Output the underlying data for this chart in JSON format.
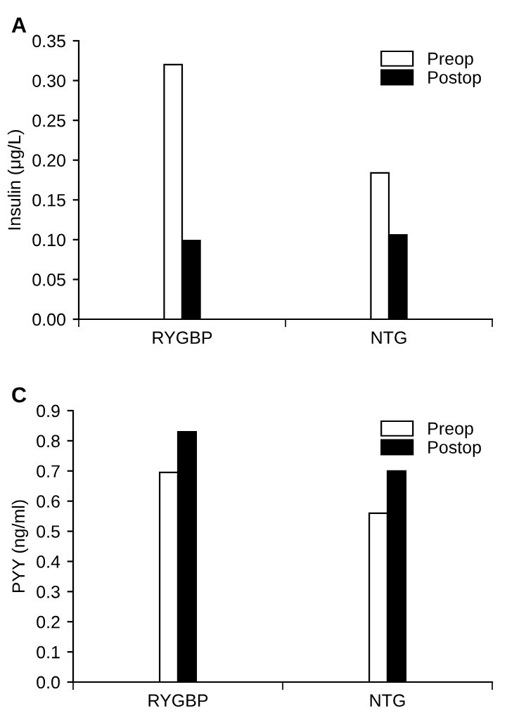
{
  "chart_data": [
    {
      "type": "bar",
      "title": "A",
      "ylabel": "Insulin (μg/L)",
      "categories": [
        "RYGBP",
        "NTG"
      ],
      "series": [
        {
          "name": "Preop",
          "color": "#ffffff",
          "values": [
            0.32,
            0.184
          ]
        },
        {
          "name": "Postop",
          "color": "#000000",
          "values": [
            0.099,
            0.106
          ]
        }
      ],
      "ylim": [
        0,
        0.35
      ],
      "yticks": [
        {
          "value": 0,
          "label": "0.00"
        },
        {
          "value": 0.05,
          "label": "0.05"
        },
        {
          "value": 0.1,
          "label": "0.10"
        },
        {
          "value": 0.15,
          "label": "0.15"
        },
        {
          "value": 0.2,
          "label": "0.20"
        },
        {
          "value": 0.25,
          "label": "0.25"
        },
        {
          "value": 0.3,
          "label": "0.30"
        },
        {
          "value": 0.35,
          "label": "0.35"
        }
      ],
      "grid": false,
      "legend": "top right"
    },
    {
      "type": "bar",
      "title": "C",
      "ylabel": "PYY (ng/ml)",
      "categories": [
        "RYGBP",
        "NTG"
      ],
      "series": [
        {
          "name": "Preop",
          "color": "#ffffff",
          "values": [
            0.695,
            0.56
          ]
        },
        {
          "name": "Postop",
          "color": "#000000",
          "values": [
            0.83,
            0.7
          ]
        }
      ],
      "ylim": [
        0,
        0.9
      ],
      "yticks": [
        {
          "value": 0,
          "label": "0.0"
        },
        {
          "value": 0.1,
          "label": "0.1"
        },
        {
          "value": 0.2,
          "label": "0.2"
        },
        {
          "value": 0.3,
          "label": "0.3"
        },
        {
          "value": 0.4,
          "label": "0.4"
        },
        {
          "value": 0.5,
          "label": "0.5"
        },
        {
          "value": 0.6,
          "label": "0.6"
        },
        {
          "value": 0.7,
          "label": "0.7"
        },
        {
          "value": 0.8,
          "label": "0.8"
        },
        {
          "value": 0.9,
          "label": "0.9"
        }
      ],
      "grid": false,
      "legend": "top right"
    }
  ]
}
